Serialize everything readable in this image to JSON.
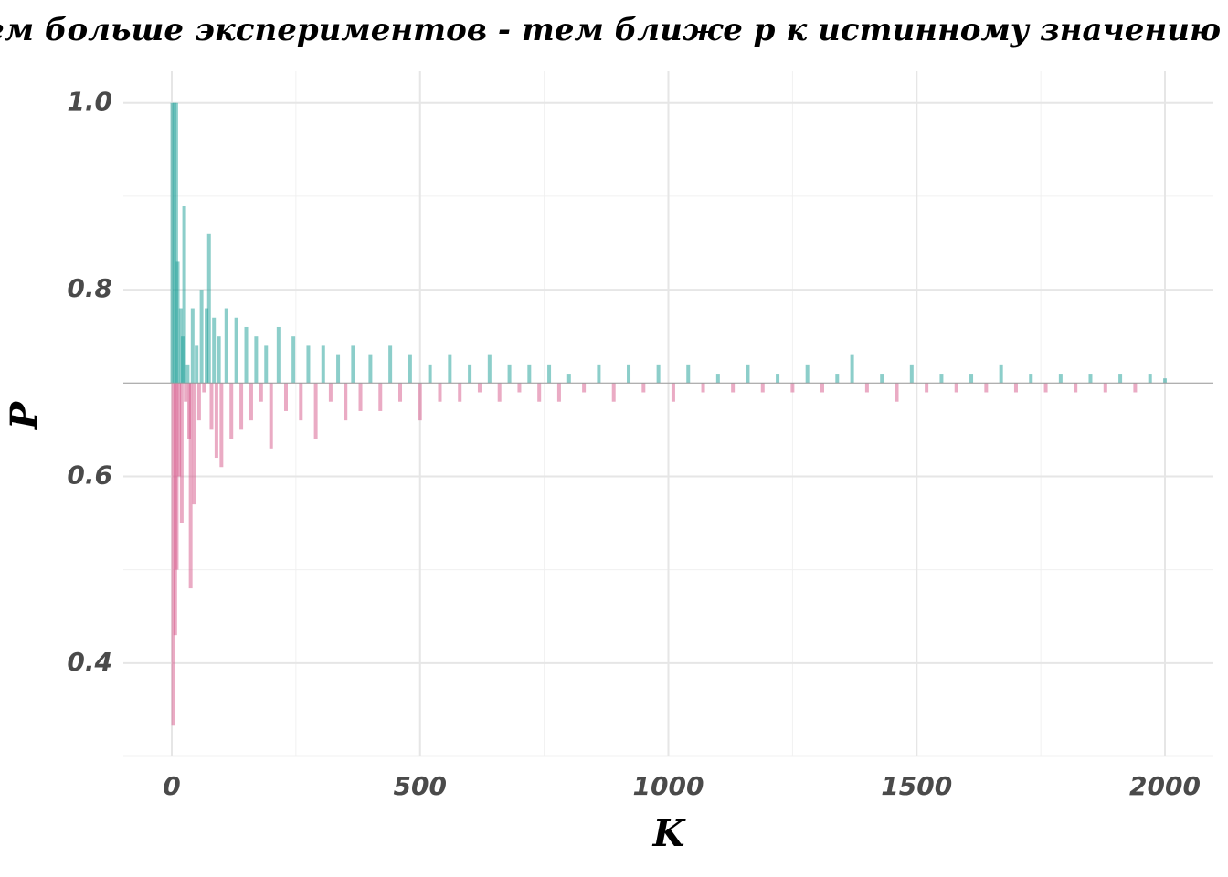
{
  "chart_data": {
    "type": "bar",
    "title": "ЗБЧ: Чем больше экспериментов - тем ближе p к истинному значению",
    "x_label": "K",
    "y_label": "P",
    "baseline": 0.7,
    "color_above": "#1a9e96",
    "color_below": "#d6588a",
    "xlim": [
      -97.5,
      2097.5
    ],
    "xticks": [
      0,
      500,
      1000,
      1500,
      2000
    ],
    "ylim": [
      0.3,
      1.034
    ],
    "yticks": [
      0.4,
      0.6,
      0.8,
      {
        "value": 1.0,
        "label": "1.0"
      }
    ],
    "minor_xgrid": [
      250,
      750,
      1250,
      1750
    ],
    "minor_ygrid": [
      0.3,
      0.5,
      0.7,
      0.9
    ],
    "grid": true,
    "x": [
      1,
      3,
      5,
      7,
      9,
      10,
      12,
      15,
      18,
      20,
      22,
      25,
      28,
      32,
      35,
      38,
      42,
      45,
      50,
      55,
      60,
      65,
      70,
      75,
      80,
      85,
      90,
      95,
      100,
      110,
      120,
      130,
      140,
      150,
      160,
      170,
      180,
      190,
      200,
      215,
      230,
      245,
      260,
      275,
      290,
      305,
      320,
      335,
      350,
      365,
      380,
      400,
      420,
      440,
      460,
      480,
      500,
      520,
      540,
      560,
      580,
      600,
      620,
      640,
      660,
      680,
      700,
      720,
      740,
      760,
      780,
      800,
      830,
      860,
      890,
      920,
      950,
      980,
      1010,
      1040,
      1070,
      1100,
      1130,
      1160,
      1190,
      1220,
      1250,
      1280,
      1310,
      1340,
      1370,
      1400,
      1430,
      1460,
      1490,
      1520,
      1550,
      1580,
      1610,
      1640,
      1670,
      1700,
      1730,
      1760,
      1790,
      1820,
      1850,
      1880,
      1910,
      1940,
      1970,
      2000
    ],
    "values": [
      1.0,
      0.333,
      1.0,
      0.43,
      1.0,
      0.5,
      0.83,
      0.6,
      0.78,
      0.55,
      0.75,
      0.89,
      0.68,
      0.72,
      0.64,
      0.48,
      0.78,
      0.57,
      0.74,
      0.66,
      0.8,
      0.69,
      0.78,
      0.86,
      0.65,
      0.77,
      0.62,
      0.75,
      0.61,
      0.78,
      0.64,
      0.77,
      0.65,
      0.76,
      0.66,
      0.75,
      0.68,
      0.74,
      0.63,
      0.76,
      0.67,
      0.75,
      0.66,
      0.74,
      0.64,
      0.74,
      0.68,
      0.73,
      0.66,
      0.74,
      0.67,
      0.73,
      0.67,
      0.74,
      0.68,
      0.73,
      0.66,
      0.72,
      0.68,
      0.73,
      0.68,
      0.72,
      0.69,
      0.73,
      0.68,
      0.72,
      0.69,
      0.72,
      0.68,
      0.72,
      0.68,
      0.71,
      0.69,
      0.72,
      0.68,
      0.72,
      0.69,
      0.72,
      0.68,
      0.72,
      0.69,
      0.71,
      0.69,
      0.72,
      0.69,
      0.71,
      0.69,
      0.72,
      0.69,
      0.71,
      0.73,
      0.69,
      0.71,
      0.68,
      0.72,
      0.69,
      0.71,
      0.69,
      0.71,
      0.69,
      0.72,
      0.69,
      0.71,
      0.69,
      0.71,
      0.69,
      0.71,
      0.69,
      0.71,
      0.69,
      0.71,
      0.705
    ]
  }
}
